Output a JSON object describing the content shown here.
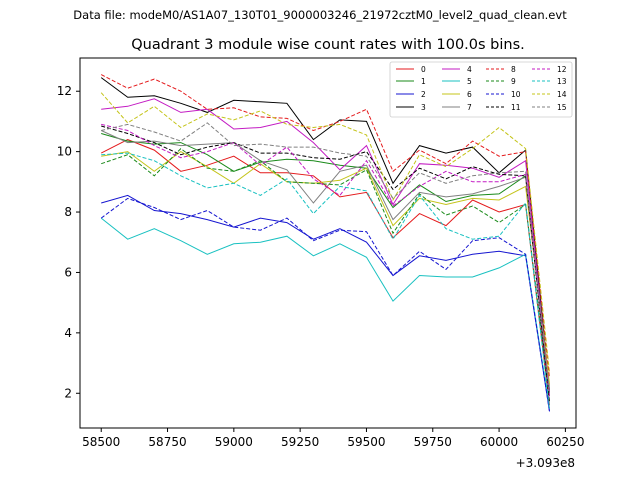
{
  "header": {
    "data_file": "Data file: modeM0/AS1A07_130T01_9000003246_21972cztM0_level2_quad_clean.evt"
  },
  "chart_data": {
    "type": "line",
    "title": "Quadrant 3 module wise count rates with 100.0s bins.",
    "xlabel": "",
    "ylabel": "",
    "x_offset_label": "+3.093e8",
    "xlim": [
      58420,
      60290
    ],
    "ylim": [
      0.85,
      13.1
    ],
    "x_ticks": [
      58500,
      58750,
      59000,
      59250,
      59500,
      59750,
      60000,
      60250
    ],
    "x_tick_labels": [
      "58500",
      "58750",
      "59000",
      "59250",
      "59500",
      "59750",
      "60000",
      "60250"
    ],
    "y_ticks": [
      2,
      4,
      6,
      8,
      10,
      12
    ],
    "y_tick_labels": [
      "2",
      "4",
      "6",
      "8",
      "10",
      "12"
    ],
    "grid": false,
    "legend_position": "top-right",
    "x": [
      58500,
      58600,
      58700,
      58800,
      58900,
      59000,
      59100,
      59200,
      59300,
      59400,
      59500,
      59600,
      59700,
      59800,
      59900,
      60000,
      60100,
      60190
    ],
    "series": [
      {
        "name": "0",
        "color": "#e41a1c",
        "dash": "solid",
        "values": [
          9.95,
          10.4,
          10.05,
          9.35,
          9.55,
          9.85,
          9.3,
          9.3,
          9.2,
          8.5,
          8.65,
          7.15,
          7.95,
          7.55,
          8.4,
          8.0,
          8.25,
          1.6
        ]
      },
      {
        "name": "1",
        "color": "#1a8a1a",
        "dash": "solid",
        "values": [
          10.6,
          10.35,
          10.25,
          10.3,
          9.9,
          9.35,
          9.65,
          9.75,
          9.7,
          9.55,
          9.45,
          8.15,
          8.9,
          8.35,
          8.55,
          8.6,
          9.2,
          2.0
        ]
      },
      {
        "name": "2",
        "color": "#1515d0",
        "dash": "solid",
        "values": [
          8.3,
          8.55,
          8.05,
          7.95,
          7.75,
          7.5,
          7.8,
          7.65,
          7.1,
          7.45,
          7.0,
          5.9,
          6.55,
          6.4,
          6.6,
          6.7,
          6.55,
          1.4
        ]
      },
      {
        "name": "3",
        "color": "#000000",
        "dash": "solid",
        "values": [
          12.45,
          11.8,
          11.85,
          11.6,
          11.3,
          11.7,
          11.65,
          11.6,
          10.4,
          11.05,
          11.0,
          8.95,
          10.2,
          9.95,
          10.15,
          9.3,
          10.05,
          2.1
        ]
      },
      {
        "name": "4",
        "color": "#c31bc3",
        "dash": "solid",
        "values": [
          11.4,
          11.5,
          11.75,
          11.3,
          11.4,
          10.75,
          10.8,
          11.0,
          10.3,
          9.4,
          10.2,
          8.25,
          9.6,
          9.55,
          9.45,
          9.15,
          9.7,
          2.0
        ]
      },
      {
        "name": "5",
        "color": "#19c1c1",
        "dash": "solid",
        "values": [
          7.8,
          7.1,
          7.45,
          7.05,
          6.6,
          6.95,
          7.0,
          7.2,
          6.55,
          6.95,
          6.5,
          5.05,
          5.9,
          5.85,
          5.85,
          6.15,
          6.6,
          1.5
        ]
      },
      {
        "name": "6",
        "color": "#c4c41a",
        "dash": "solid",
        "values": [
          9.85,
          10.0,
          9.35,
          10.0,
          9.5,
          8.95,
          9.6,
          9.0,
          8.95,
          9.05,
          9.45,
          7.55,
          8.45,
          8.25,
          8.45,
          8.4,
          8.85,
          2.3
        ]
      },
      {
        "name": "7",
        "color": "#808080",
        "dash": "solid",
        "values": [
          10.7,
          10.3,
          10.35,
          10.2,
          10.25,
          10.3,
          9.7,
          9.4,
          8.3,
          9.35,
          9.55,
          7.75,
          8.65,
          8.5,
          8.6,
          8.85,
          9.15,
          2.0
        ]
      },
      {
        "name": "8",
        "color": "#e41a1c",
        "dash": "dashed",
        "values": [
          12.55,
          12.1,
          12.4,
          12.0,
          11.4,
          11.45,
          11.15,
          11.1,
          10.7,
          11.0,
          11.4,
          9.35,
          10.05,
          9.6,
          10.35,
          9.85,
          10.0,
          2.5
        ]
      },
      {
        "name": "9",
        "color": "#1a8a1a",
        "dash": "dashed",
        "values": [
          9.6,
          9.9,
          9.2,
          10.1,
          9.45,
          9.35,
          9.7,
          9.0,
          8.95,
          8.9,
          9.4,
          7.3,
          8.6,
          7.9,
          8.2,
          7.65,
          8.25,
          1.9
        ]
      },
      {
        "name": "10",
        "color": "#1515d0",
        "dash": "dashed",
        "values": [
          7.8,
          8.45,
          8.15,
          7.75,
          8.05,
          7.5,
          7.4,
          7.8,
          7.05,
          7.4,
          7.35,
          5.9,
          6.7,
          6.1,
          7.05,
          7.15,
          6.6,
          1.4
        ]
      },
      {
        "name": "11",
        "color": "#000000",
        "dash": "dashed",
        "values": [
          10.85,
          10.6,
          10.3,
          9.9,
          10.15,
          10.3,
          9.95,
          9.95,
          9.8,
          9.75,
          10.0,
          8.75,
          9.45,
          9.1,
          9.5,
          9.25,
          9.2,
          1.7
        ]
      },
      {
        "name": "12",
        "color": "#c31bc3",
        "dash": "dashed",
        "values": [
          10.9,
          10.7,
          10.2,
          9.8,
          10.0,
          10.3,
          9.55,
          10.15,
          9.1,
          8.55,
          9.7,
          8.2,
          8.85,
          9.35,
          9.0,
          9.0,
          9.25,
          1.9
        ]
      },
      {
        "name": "13",
        "color": "#19c1c1",
        "dash": "dashed",
        "values": [
          9.9,
          9.95,
          9.7,
          9.2,
          8.8,
          8.95,
          8.55,
          9.1,
          7.95,
          8.85,
          8.7,
          7.1,
          8.55,
          7.45,
          7.1,
          7.2,
          8.3,
          1.5
        ]
      },
      {
        "name": "14",
        "color": "#c4c41a",
        "dash": "dashed",
        "values": [
          11.95,
          10.95,
          11.5,
          10.8,
          11.25,
          11.05,
          11.35,
          10.9,
          10.8,
          10.9,
          10.55,
          8.4,
          9.9,
          9.5,
          10.1,
          10.8,
          10.1,
          2.7
        ]
      },
      {
        "name": "15",
        "color": "#808080",
        "dash": "dashed",
        "values": [
          10.7,
          10.9,
          10.65,
          10.35,
          10.95,
          10.2,
          10.25,
          10.15,
          10.15,
          9.95,
          9.85,
          8.45,
          9.3,
          8.95,
          9.2,
          9.3,
          9.35,
          2.05
        ]
      }
    ]
  }
}
